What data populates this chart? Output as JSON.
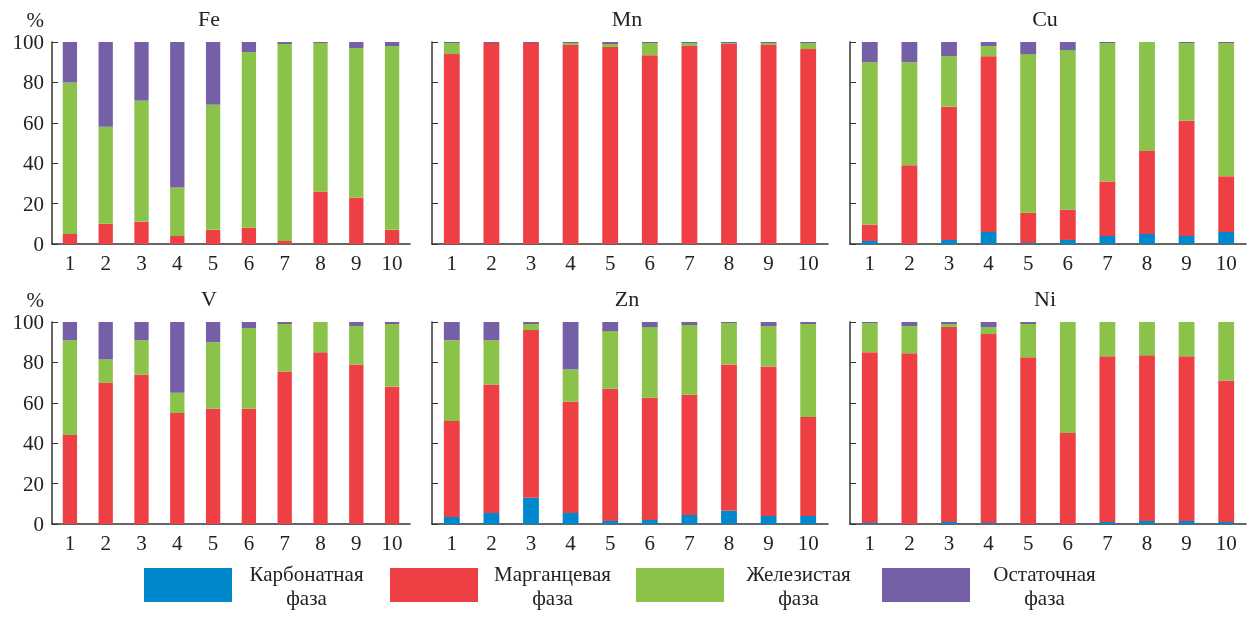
{
  "chart_data": [
    {
      "type": "bar",
      "title": "Fe",
      "ylabel": "%",
      "stacked": true,
      "legend": "bottom",
      "grid": false,
      "categories": [
        "1",
        "2",
        "3",
        "4",
        "5",
        "6",
        "7",
        "8",
        "9",
        "10"
      ],
      "ylim": [
        0,
        100
      ],
      "yticks": [
        0,
        20,
        40,
        60,
        80,
        100
      ],
      "series": [
        {
          "name": "Карбонатная фаза",
          "color": "#0088cc",
          "values": [
            0,
            0,
            0,
            0,
            0,
            0,
            0,
            0,
            0,
            0
          ]
        },
        {
          "name": "Марганцевая фаза",
          "color": "#ee4044",
          "values": [
            5,
            10,
            11,
            4,
            7,
            8,
            1.5,
            26,
            23,
            7
          ]
        },
        {
          "name": "Железистая фаза",
          "color": "#8bc34a",
          "values": [
            75,
            48,
            60,
            24,
            62,
            87,
            97.5,
            73.5,
            74,
            91
          ]
        },
        {
          "name": "Остаточная фаза",
          "color": "#7560a8",
          "values": [
            20,
            42,
            29,
            72,
            31,
            5,
            1,
            0.5,
            3,
            2
          ]
        }
      ]
    },
    {
      "type": "bar",
      "title": "Mn",
      "stacked": true,
      "grid": false,
      "tick_labels": "x",
      "categories": [
        "1",
        "2",
        "3",
        "4",
        "5",
        "6",
        "7",
        "8",
        "9",
        "10"
      ],
      "ylim": [
        0,
        100
      ],
      "yticks": [
        0,
        20,
        40,
        60,
        80,
        100
      ],
      "series": [
        {
          "color": "#0088cc",
          "values": [
            0,
            0,
            0,
            0,
            0,
            0,
            0,
            0,
            0,
            0
          ]
        },
        {
          "color": "#ee4044",
          "values": [
            94,
            99.5,
            99.5,
            98.5,
            97.5,
            93.5,
            98,
            99,
            98.5,
            96.5
          ]
        },
        {
          "color": "#8bc34a",
          "values": [
            5.5,
            0,
            0,
            1,
            1.5,
            6,
            1.5,
            0.5,
            1,
            3
          ]
        },
        {
          "color": "#7560a8",
          "values": [
            0.5,
            0.5,
            0.5,
            0.5,
            1,
            0.5,
            0.5,
            0.5,
            0.5,
            0.5
          ]
        }
      ]
    },
    {
      "type": "bar",
      "title": "Cu",
      "stacked": true,
      "grid": false,
      "tick_labels": "x",
      "categories": [
        "1",
        "2",
        "3",
        "4",
        "5",
        "6",
        "7",
        "8",
        "9",
        "10"
      ],
      "ylim": [
        0,
        100
      ],
      "yticks": [
        0,
        20,
        40,
        60,
        80,
        100
      ],
      "series": [
        {
          "color": "#0088cc",
          "values": [
            1.5,
            0,
            2,
            6,
            0.5,
            2,
            4,
            5,
            4,
            6
          ]
        },
        {
          "color": "#ee4044",
          "values": [
            8,
            39,
            66,
            87,
            15,
            15,
            27,
            41,
            57,
            27.5
          ]
        },
        {
          "color": "#8bc34a",
          "values": [
            80.5,
            51,
            25,
            5,
            78.5,
            79,
            68.5,
            54,
            38.5,
            66
          ]
        },
        {
          "color": "#7560a8",
          "values": [
            10,
            10,
            7,
            2,
            6,
            4,
            0.5,
            0,
            0.5,
            0.5
          ]
        }
      ]
    },
    {
      "type": "bar",
      "title": "V",
      "ylabel": "%",
      "stacked": true,
      "grid": false,
      "categories": [
        "1",
        "2",
        "3",
        "4",
        "5",
        "6",
        "7",
        "8",
        "9",
        "10"
      ],
      "ylim": [
        0,
        100
      ],
      "yticks": [
        0,
        20,
        40,
        60,
        80,
        100
      ],
      "series": [
        {
          "color": "#0088cc",
          "values": [
            0,
            0,
            0,
            0,
            0,
            0,
            0,
            0,
            0,
            0
          ]
        },
        {
          "color": "#ee4044",
          "values": [
            44,
            70,
            74,
            55,
            57,
            57,
            75.5,
            85,
            79,
            68
          ]
        },
        {
          "color": "#8bc34a",
          "values": [
            47,
            11.5,
            17,
            10,
            33,
            40,
            23.5,
            15,
            19,
            31
          ]
        },
        {
          "color": "#7560a8",
          "values": [
            9,
            18.5,
            9,
            35,
            10,
            3,
            1,
            0,
            2,
            1
          ]
        }
      ]
    },
    {
      "type": "bar",
      "title": "Zn",
      "stacked": true,
      "grid": false,
      "tick_labels": "x",
      "categories": [
        "1",
        "2",
        "3",
        "4",
        "5",
        "6",
        "7",
        "8",
        "9",
        "10"
      ],
      "ylim": [
        0,
        100
      ],
      "yticks": [
        0,
        20,
        40,
        60,
        80,
        100
      ],
      "series": [
        {
          "color": "#0088cc",
          "values": [
            3.5,
            5.5,
            13,
            5.5,
            1.5,
            2,
            4.5,
            6.5,
            4,
            4
          ]
        },
        {
          "color": "#ee4044",
          "values": [
            47.5,
            63.5,
            83,
            55,
            65.5,
            60.5,
            59.5,
            72.5,
            74,
            49
          ]
        },
        {
          "color": "#8bc34a",
          "values": [
            40,
            22,
            3,
            16,
            28.5,
            35,
            34.5,
            20.5,
            20,
            46
          ]
        },
        {
          "color": "#7560a8",
          "values": [
            9,
            9,
            1,
            23.5,
            4.5,
            2.5,
            1.5,
            0.5,
            2,
            1
          ]
        }
      ]
    },
    {
      "type": "bar",
      "title": "Ni",
      "stacked": true,
      "grid": false,
      "tick_labels": "x",
      "categories": [
        "1",
        "2",
        "3",
        "4",
        "5",
        "6",
        "7",
        "8",
        "9",
        "10"
      ],
      "ylim": [
        0,
        100
      ],
      "yticks": [
        0,
        20,
        40,
        60,
        80,
        100
      ],
      "series": [
        {
          "color": "#0088cc",
          "values": [
            0.5,
            0,
            1,
            0.5,
            0,
            0,
            1,
            1.5,
            1.5,
            1
          ]
        },
        {
          "color": "#ee4044",
          "values": [
            84.5,
            84.5,
            96.5,
            93.5,
            82.5,
            45,
            82,
            82,
            81.5,
            70
          ]
        },
        {
          "color": "#8bc34a",
          "values": [
            14.5,
            13.5,
            1.5,
            3.5,
            16.5,
            55,
            17,
            16.5,
            17,
            29
          ]
        },
        {
          "color": "#7560a8",
          "values": [
            0.5,
            2,
            1,
            2.5,
            1,
            0,
            0,
            0,
            0,
            0
          ]
        }
      ]
    }
  ]
}
